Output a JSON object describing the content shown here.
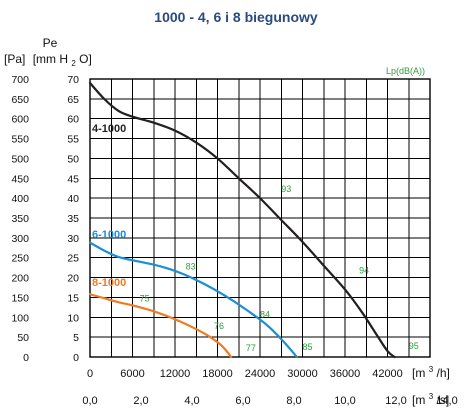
{
  "chart_data": {
    "type": "line",
    "title": "1000 - 4, 6 i 8 biegunowy",
    "ylabel_line1": "Pe",
    "ylabel_line2_pa": "[Pa]",
    "ylabel_line2_mm": "[mm H",
    "ylabel_line2_sub": "2",
    "ylabel_line2_tail": "O]",
    "noise_label": "Lp(dB(A))",
    "x_unit_main": "[m",
    "x_unit_main_sup": "3",
    "x_unit_main_tail": "/h]",
    "x_unit_secondary": "[m",
    "x_unit_secondary_sup": "3",
    "x_unit_secondary_tail": "/s]",
    "xlim": [
      0,
      48000
    ],
    "ylim": [
      0,
      700
    ],
    "y_ticks_pa": [
      "0",
      "50",
      "100",
      "150",
      "200",
      "250",
      "300",
      "350",
      "400",
      "450",
      "500",
      "550",
      "600",
      "650",
      "700"
    ],
    "y_ticks_mm": [
      "0",
      "5",
      "10",
      "15",
      "20",
      "25",
      "30",
      "35",
      "40",
      "45",
      "50",
      "55",
      "60",
      "65",
      "70"
    ],
    "x_ticks_m3h": [
      "0",
      "6000",
      "12000",
      "18000",
      "24000",
      "30000",
      "36000",
      "42000"
    ],
    "x_ticks_m3s": [
      "0,0",
      "2,0",
      "4,0",
      "6,0",
      "8,0",
      "10,0",
      "12,0",
      "14,0"
    ],
    "grid": true,
    "series": [
      {
        "name": "4-1000",
        "color": "#231f20",
        "points": [
          [
            0,
            690
          ],
          [
            2000,
            650
          ],
          [
            4000,
            620
          ],
          [
            6000,
            605
          ],
          [
            9000,
            590
          ],
          [
            12000,
            570
          ],
          [
            15000,
            540
          ],
          [
            18000,
            500
          ],
          [
            21000,
            450
          ],
          [
            24000,
            400
          ],
          [
            27000,
            345
          ],
          [
            30000,
            290
          ],
          [
            33000,
            230
          ],
          [
            36000,
            170
          ],
          [
            38500,
            110
          ],
          [
            40500,
            55
          ],
          [
            42000,
            15
          ],
          [
            43000,
            0
          ]
        ],
        "noise": [
          {
            "label": "93",
            "x": 27000,
            "y": 415
          },
          {
            "label": "94",
            "x": 38000,
            "y": 210
          },
          {
            "label": "95",
            "x": 45000,
            "y": 20
          }
        ]
      },
      {
        "name": "6-1000",
        "color": "#1b8ed6",
        "points": [
          [
            0,
            288
          ],
          [
            2000,
            268
          ],
          [
            4000,
            252
          ],
          [
            7000,
            240
          ],
          [
            10000,
            228
          ],
          [
            13000,
            210
          ],
          [
            16000,
            185
          ],
          [
            19000,
            155
          ],
          [
            22000,
            120
          ],
          [
            25000,
            80
          ],
          [
            27000,
            45
          ],
          [
            28500,
            15
          ],
          [
            29200,
            0
          ]
        ],
        "noise": [
          {
            "label": "83",
            "x": 13500,
            "y": 220
          },
          {
            "label": "84",
            "x": 24000,
            "y": 100
          },
          {
            "label": "85",
            "x": 30000,
            "y": 18
          }
        ]
      },
      {
        "name": "8-1000",
        "color": "#ef7b22",
        "points": [
          [
            0,
            158
          ],
          [
            2000,
            148
          ],
          [
            4000,
            138
          ],
          [
            6000,
            130
          ],
          [
            9000,
            115
          ],
          [
            12000,
            95
          ],
          [
            15000,
            70
          ],
          [
            17000,
            50
          ],
          [
            18500,
            30
          ],
          [
            19500,
            10
          ],
          [
            19900,
            0
          ]
        ],
        "noise": [
          {
            "label": "75",
            "x": 7000,
            "y": 140
          },
          {
            "label": "76",
            "x": 17500,
            "y": 70
          },
          {
            "label": "77",
            "x": 22000,
            "y": 15
          }
        ]
      }
    ]
  }
}
